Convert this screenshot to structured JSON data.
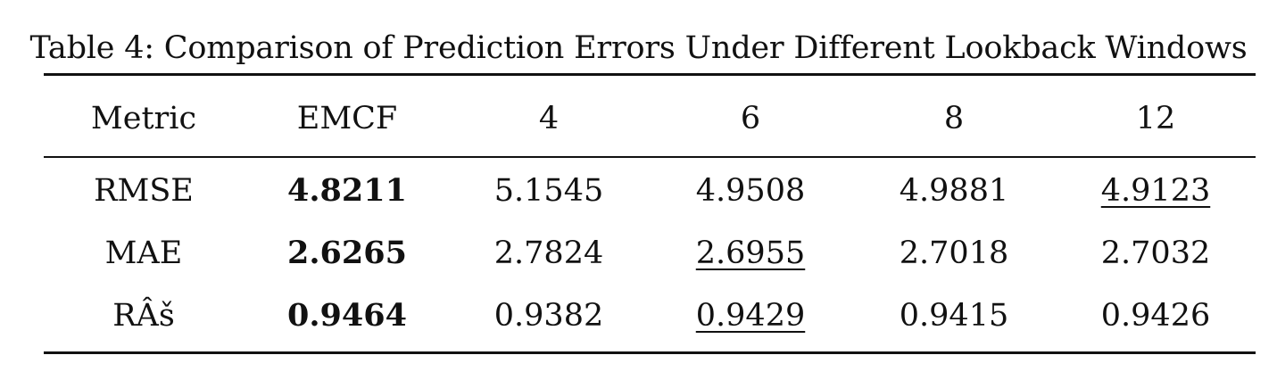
{
  "caption": "Table 4: Comparison of Prediction Errors Under Different Lookback Windows",
  "table": {
    "headers": [
      "Metric",
      "EMCF",
      "4",
      "6",
      "8",
      "12"
    ],
    "rows": [
      {
        "metric": "RMSE",
        "values": [
          "4.8211",
          "5.1545",
          "4.9508",
          "4.9881",
          "4.9123"
        ]
      },
      {
        "metric": "MAE",
        "values": [
          "2.6265",
          "2.7824",
          "2.6955",
          "2.7018",
          "2.7032"
        ]
      },
      {
        "metric": "RÂš",
        "values": [
          "0.9464",
          "0.9382",
          "0.9429",
          "0.9415",
          "0.9426"
        ]
      }
    ],
    "bold_column": "EMCF",
    "underlined": [
      {
        "metric": "RMSE",
        "column": "12"
      },
      {
        "metric": "MAE",
        "column": "6"
      },
      {
        "metric": "RÂš",
        "column": "6"
      }
    ]
  }
}
